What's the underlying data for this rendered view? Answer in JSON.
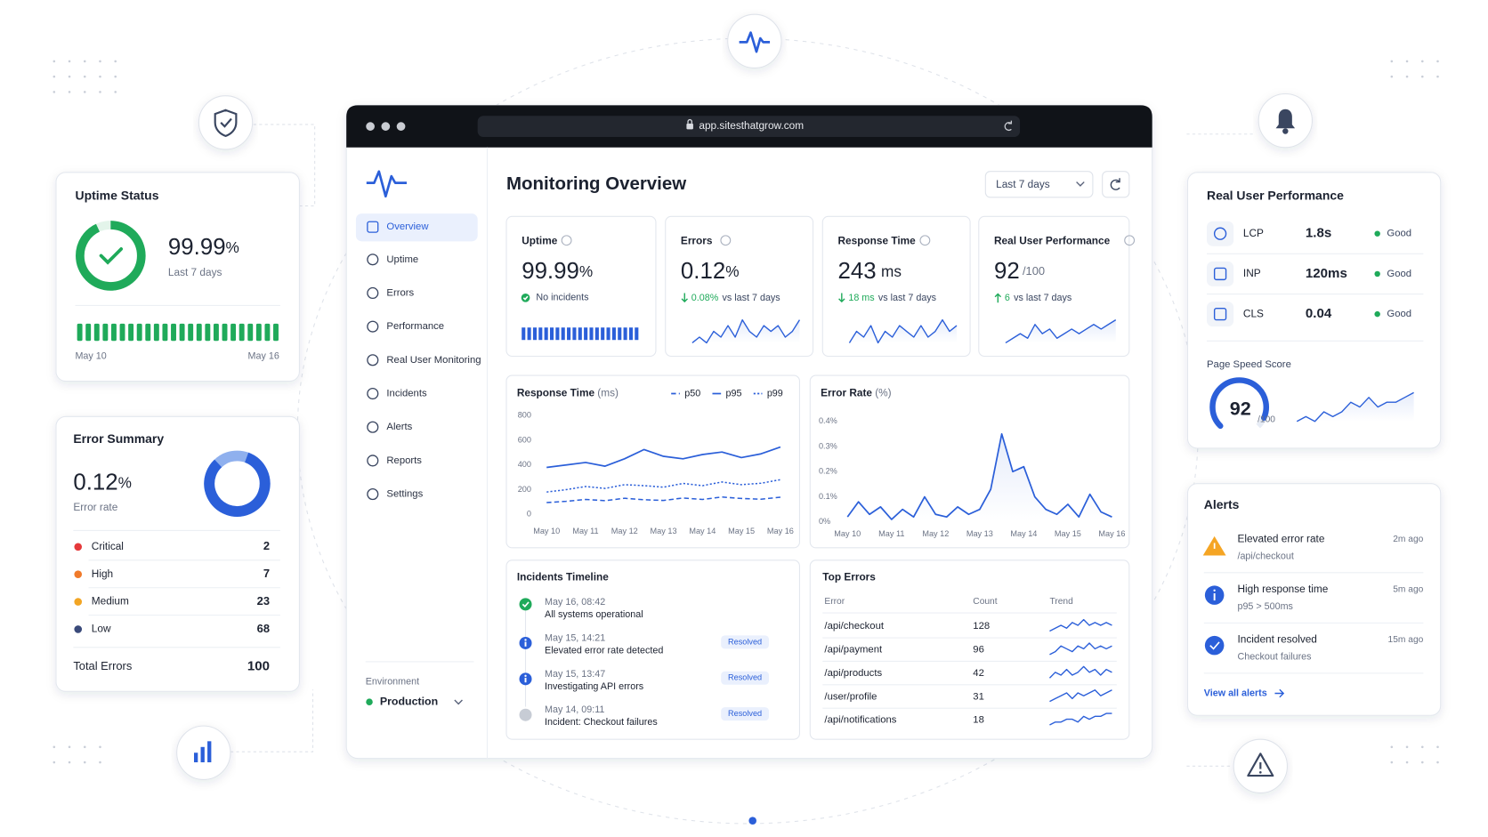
{
  "browser": {
    "url": "app.sitesthatgrow.com"
  },
  "uptime_card": {
    "title": "Uptime Status",
    "value": 99.99,
    "unit": "%",
    "period": "Last 7 days",
    "start": "May 10",
    "end": "May 16"
  },
  "error_summary": {
    "title": "Error Summary",
    "value": 0.12,
    "unit": "%",
    "label": "Error rate",
    "rows": [
      {
        "name": "Critical",
        "count": 2,
        "color": "#e5393b"
      },
      {
        "name": "High",
        "count": 7,
        "color": "#f07a2a"
      },
      {
        "name": "Medium",
        "count": 23,
        "color": "#f2a524"
      },
      {
        "name": "Low",
        "count": 68,
        "color": "#3a4a7a"
      }
    ],
    "total_label": "Total Errors",
    "total": 100
  },
  "sidebar": {
    "items": [
      "Overview",
      "Uptime",
      "Errors",
      "Performance",
      "Real User Monitoring",
      "Incidents",
      "Alerts",
      "Reports",
      "Settings"
    ],
    "env_label": "Environment",
    "env": "Production"
  },
  "header": {
    "title": "Monitoring Overview",
    "range": "Last 7 days"
  },
  "kpis": [
    {
      "label": "Uptime",
      "value": 99.99,
      "unit": "%",
      "note": "No incidents"
    },
    {
      "label": "Errors",
      "value": 0.12,
      "unit": "%",
      "delta": "0.08%",
      "note": "vs last 7 days",
      "trend": [
        3,
        4,
        3,
        5,
        4,
        6,
        4,
        7,
        5,
        4,
        6,
        5,
        6,
        4,
        5,
        7
      ]
    },
    {
      "label": "Response Time",
      "value": 243,
      "unit": "ms",
      "delta": "18 ms",
      "note": "vs last 7 days",
      "trend": [
        3,
        5,
        4,
        6,
        3,
        5,
        4,
        6,
        5,
        4,
        6,
        4,
        5,
        7,
        5,
        6
      ]
    },
    {
      "label": "Real User Performance",
      "value": 92,
      "unit": "/100",
      "delta": "6",
      "note": "vs last 7 days",
      "trend": [
        3,
        4,
        5,
        4,
        7,
        5,
        6,
        4,
        5,
        6,
        5,
        6,
        7,
        6,
        7,
        8
      ]
    }
  ],
  "response_chart": {
    "type": "line",
    "title": "Response Time",
    "unit": "(ms)",
    "categories": [
      "May 10",
      null,
      "May 11",
      null,
      "May 12",
      null,
      "May 13",
      null,
      "May 14",
      null,
      "May 15",
      null,
      "May 16"
    ],
    "ylim": [
      0,
      800
    ],
    "yticks": [
      0,
      200,
      400,
      600,
      800
    ],
    "grid": false,
    "series": [
      {
        "name": "p50",
        "color": "#2b5fd9",
        "dash": "5 3",
        "values": [
          95,
          105,
          120,
          110,
          130,
          118,
          112,
          132,
          120,
          140,
          128,
          122,
          138
        ]
      },
      {
        "name": "p95",
        "color": "#2b5fd9",
        "dash": "",
        "values": [
          380,
          400,
          420,
          390,
          450,
          525,
          470,
          450,
          485,
          505,
          460,
          490,
          545
        ]
      },
      {
        "name": "p99",
        "color": "#2b5fd9",
        "dash": "2 2",
        "values": [
          180,
          200,
          225,
          210,
          240,
          232,
          220,
          250,
          232,
          262,
          240,
          252,
          280
        ]
      }
    ]
  },
  "error_chart": {
    "type": "line",
    "title": "Error Rate",
    "unit": "(%)",
    "color": "#2b5fd9",
    "categories": [
      "May 10",
      null,
      null,
      null,
      "May 11",
      null,
      null,
      null,
      "May 12",
      null,
      null,
      null,
      "May 13",
      null,
      null,
      null,
      "May 14",
      null,
      null,
      null,
      "May 15",
      null,
      null,
      null,
      "May 16"
    ],
    "ylim": [
      0,
      0.4
    ],
    "yticks": [
      {
        "value": 0,
        "label": "0%"
      },
      {
        "value": 0.1,
        "label": "0.1%"
      },
      {
        "value": 0.2,
        "label": "0.2%"
      },
      {
        "value": 0.3,
        "label": "0.3%"
      },
      {
        "value": 0.4,
        "label": "0.4%"
      }
    ],
    "values": [
      0.02,
      0.08,
      0.03,
      0.06,
      0.01,
      0.05,
      0.02,
      0.1,
      0.03,
      0.02,
      0.06,
      0.03,
      0.05,
      0.13,
      0.35,
      0.2,
      0.22,
      0.1,
      0.05,
      0.03,
      0.07,
      0.02,
      0.11,
      0.04,
      0.02
    ]
  },
  "incidents": {
    "title": "Incidents Timeline",
    "items": [
      {
        "time": "May 16, 08:42",
        "text": "All systems operational",
        "status": null,
        "icon": "ok"
      },
      {
        "time": "May 15, 14:21",
        "text": "Elevated error rate detected",
        "status": "Resolved",
        "icon": "info"
      },
      {
        "time": "May 15, 13:47",
        "text": "Investigating API errors",
        "status": "Resolved",
        "icon": "work"
      },
      {
        "time": "May 14, 09:11",
        "text": "Incident: Checkout failures",
        "status": "Resolved",
        "icon": "past"
      }
    ]
  },
  "top_errors": {
    "title": "Top Errors",
    "headers": [
      "Error",
      "Count",
      "Trend"
    ],
    "rows": [
      {
        "error": "/api/checkout",
        "count": 128,
        "trend": [
          3,
          4,
          5,
          4,
          6,
          5,
          7,
          5,
          6,
          5,
          6,
          5
        ]
      },
      {
        "error": "/api/payment",
        "count": 96,
        "trend": [
          3,
          4,
          6,
          5,
          4,
          6,
          5,
          7,
          5,
          6,
          5,
          6
        ]
      },
      {
        "error": "/api/products",
        "count": 42,
        "trend": [
          3,
          5,
          4,
          6,
          4,
          5,
          7,
          5,
          6,
          4,
          6,
          5
        ]
      },
      {
        "error": "/user/profile",
        "count": 31,
        "trend": [
          3,
          4,
          5,
          6,
          4,
          6,
          5,
          6,
          7,
          5,
          6,
          7
        ]
      },
      {
        "error": "/api/notifications",
        "count": 18,
        "trend": [
          3,
          4,
          4,
          5,
          5,
          4,
          6,
          5,
          6,
          6,
          7,
          7
        ]
      }
    ]
  },
  "rum": {
    "title": "Real User Performance",
    "rows": [
      {
        "metric": "LCP",
        "value": "1.8s",
        "status": "Good"
      },
      {
        "metric": "INP",
        "value": "120ms",
        "status": "Good"
      },
      {
        "metric": "CLS",
        "value": 0.04,
        "status": "Good"
      }
    ],
    "score_label": "Page Speed Score",
    "score": 92,
    "score_max": "/100",
    "trend": [
      3,
      4,
      3,
      5,
      4,
      5,
      7,
      6,
      8,
      6,
      7,
      7,
      8,
      9
    ]
  },
  "alerts": {
    "title": "Alerts",
    "items": [
      {
        "title": "Elevated error rate",
        "sub": "/api/checkout",
        "time": "2m ago",
        "icon": "warn"
      },
      {
        "title": "High response time",
        "sub": "p95 > 500ms",
        "time": "5m ago",
        "icon": "info"
      },
      {
        "title": "Incident resolved",
        "sub": "Checkout failures",
        "time": "15m ago",
        "icon": "ok"
      }
    ],
    "link": "View all alerts"
  }
}
